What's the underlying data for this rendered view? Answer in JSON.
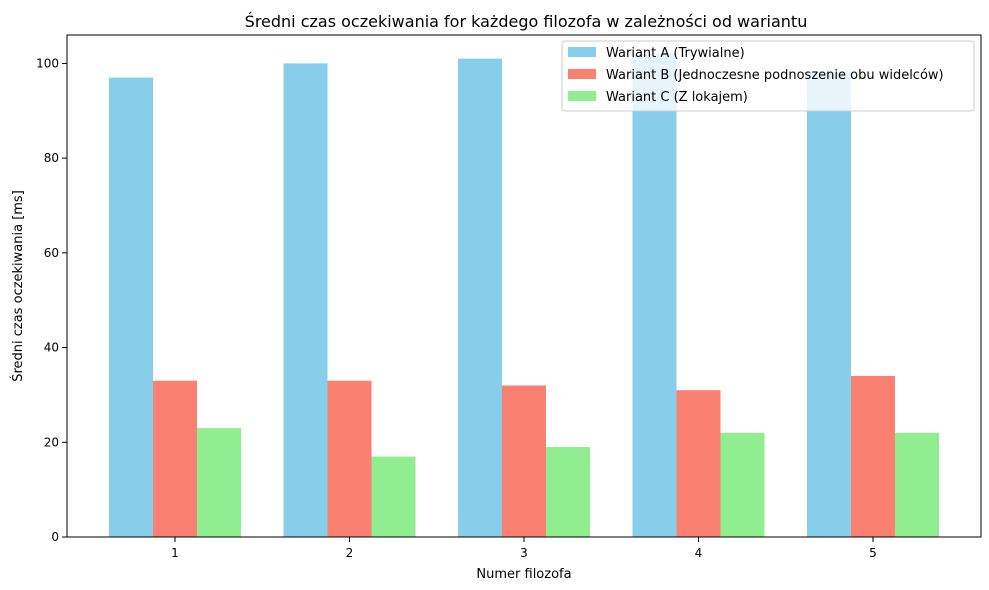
{
  "chart_data": {
    "type": "bar",
    "title": "Średni czas oczekiwania for każdego filozofa w zależności od wariantu",
    "xlabel": "Numer filozofa",
    "ylabel": "Średni czas oczekiwania [ms]",
    "categories": [
      "1",
      "2",
      "3",
      "4",
      "5"
    ],
    "ylim": [
      0,
      106
    ],
    "yticks": [
      0,
      20,
      40,
      60,
      80,
      100
    ],
    "grid": false,
    "legend_position": "top-right",
    "series": [
      {
        "name": "Wariant A (Trywialne)",
        "color": "#87ceeb",
        "values": [
          97,
          100,
          101,
          102,
          98
        ]
      },
      {
        "name": "Wariant B (Jednoczesne podnoszenie obu widelców)",
        "color": "#fa8072",
        "values": [
          33,
          33,
          32,
          31,
          34
        ]
      },
      {
        "name": "Wariant C (Z lokajem)",
        "color": "#90ee90",
        "values": [
          23,
          17,
          19,
          22,
          22
        ]
      }
    ]
  }
}
